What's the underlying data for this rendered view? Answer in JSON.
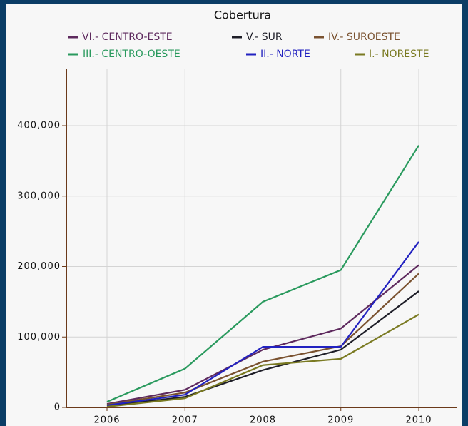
{
  "chart_data": {
    "type": "line",
    "title": "Cobertura",
    "categories": [
      "2006",
      "2007",
      "2008",
      "2009",
      "2010"
    ],
    "series": [
      {
        "name": "VI.- CENTRO-ESTE",
        "color": "#5e2a5e",
        "values": [
          5000,
          25000,
          82000,
          112000,
          202000
        ]
      },
      {
        "name": "V.- SUR",
        "color": "#1e1e28",
        "values": [
          2000,
          15000,
          53000,
          82000,
          165000
        ]
      },
      {
        "name": "IV.- SUROESTE",
        "color": "#7a5230",
        "values": [
          4000,
          21000,
          65000,
          87000,
          190000
        ]
      },
      {
        "name": "III.- CENTRO-OESTE",
        "color": "#2a9a5e",
        "values": [
          8000,
          55000,
          150000,
          195000,
          372000
        ]
      },
      {
        "name": "II.- NORTE",
        "color": "#2222c0",
        "values": [
          3000,
          18000,
          86000,
          86000,
          235000
        ]
      },
      {
        "name": "I.- NORESTE",
        "color": "#7a7a22",
        "values": [
          1000,
          13000,
          60000,
          69000,
          132000
        ]
      }
    ],
    "ylim": [
      0,
      480000
    ],
    "yticks": [
      0,
      {
        "value": 100000,
        "label": "100,000"
      },
      {
        "value": 200000,
        "label": "200,000"
      },
      {
        "value": 300000,
        "label": "300,000"
      },
      {
        "value": 400000,
        "label": "400,000"
      }
    ],
    "grid": true
  }
}
